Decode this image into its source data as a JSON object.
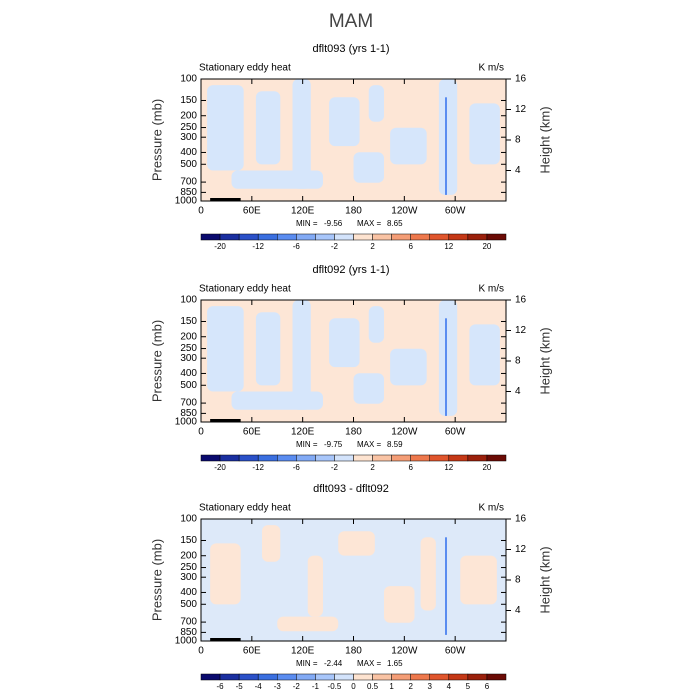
{
  "title": "MAM",
  "chart_data": [
    {
      "type": "contour",
      "title": "dflt093 (yrs 1-1)",
      "left_label": "Stationary eddy heat",
      "right_label": "K m/s",
      "ylabel": "Pressure (mb)",
      "y2label": "Height (km)",
      "ylog": true,
      "ylim": [
        1000,
        100
      ],
      "yticks": [
        100,
        150,
        200,
        250,
        300,
        400,
        500,
        700,
        850,
        1000
      ],
      "y2lim": [
        0,
        16
      ],
      "y2ticks": [
        4,
        8,
        12,
        16
      ],
      "xlim": [
        0,
        360
      ],
      "xticks": [
        0,
        {
          "value": 60,
          "label": "60E"
        },
        {
          "value": 120,
          "label": "120E"
        },
        180,
        {
          "value": 240,
          "label": "120W"
        },
        {
          "value": 300,
          "label": "60W"
        }
      ],
      "min_label": "MIN =",
      "min": -9.56,
      "max_label": "MAX =",
      "max": 8.65,
      "colorbar": {
        "colors": [
          "#0a0a6e",
          "#1a2fa0",
          "#2a50c8",
          "#3a6fe0",
          "#5a8cf0",
          "#82aaf5",
          "#a8c6fa",
          "#d3e3fb",
          "#fde3d0",
          "#f9c3a4",
          "#f49d76",
          "#ee784c",
          "#e0552c",
          "#c53816",
          "#9b200b",
          "#6b0b05"
        ],
        "labels": [
          -20,
          -12,
          -6,
          -2,
          2,
          6,
          12,
          20
        ],
        "label_every": 2
      }
    },
    {
      "type": "contour",
      "title": "dflt092 (yrs 1-1)",
      "left_label": "Stationary eddy heat",
      "right_label": "K m/s",
      "ylabel": "Pressure (mb)",
      "y2label": "Height (km)",
      "ylog": true,
      "ylim": [
        1000,
        100
      ],
      "yticks": [
        100,
        150,
        200,
        250,
        300,
        400,
        500,
        700,
        850,
        1000
      ],
      "y2lim": [
        0,
        16
      ],
      "y2ticks": [
        4,
        8,
        12,
        16
      ],
      "xlim": [
        0,
        360
      ],
      "xticks": [
        0,
        {
          "value": 60,
          "label": "60E"
        },
        {
          "value": 120,
          "label": "120E"
        },
        180,
        {
          "value": 240,
          "label": "120W"
        },
        {
          "value": 300,
          "label": "60W"
        }
      ],
      "min_label": "MIN =",
      "min": -9.75,
      "max_label": "MAX =",
      "max": 8.59,
      "colorbar": {
        "colors": [
          "#0a0a6e",
          "#1a2fa0",
          "#2a50c8",
          "#3a6fe0",
          "#5a8cf0",
          "#82aaf5",
          "#a8c6fa",
          "#d3e3fb",
          "#fde3d0",
          "#f9c3a4",
          "#f49d76",
          "#ee784c",
          "#e0552c",
          "#c53816",
          "#9b200b",
          "#6b0b05"
        ],
        "labels": [
          -20,
          -12,
          -6,
          -2,
          2,
          6,
          12,
          20
        ],
        "label_every": 2
      }
    },
    {
      "type": "contour",
      "title": "dflt093 - dflt092",
      "left_label": "Stationary eddy heat",
      "right_label": "K m/s",
      "ylabel": "Pressure (mb)",
      "y2label": "Height (km)",
      "ylog": true,
      "ylim": [
        1000,
        100
      ],
      "yticks": [
        100,
        150,
        200,
        250,
        300,
        400,
        500,
        700,
        850,
        1000
      ],
      "y2lim": [
        0,
        16
      ],
      "y2ticks": [
        4,
        8,
        12,
        16
      ],
      "xlim": [
        0,
        360
      ],
      "xticks": [
        0,
        {
          "value": 60,
          "label": "60E"
        },
        {
          "value": 120,
          "label": "120E"
        },
        180,
        {
          "value": 240,
          "label": "120W"
        },
        {
          "value": 300,
          "label": "60W"
        }
      ],
      "min_label": "MIN =",
      "min": -2.44,
      "max_label": "MAX =",
      "max": 1.65,
      "colorbar": {
        "colors": [
          "#0a0a6e",
          "#1a2fa0",
          "#2a50c8",
          "#3a6fe0",
          "#5a8cf0",
          "#82aaf5",
          "#a8c6fa",
          "#d3e3fb",
          "#fde3d0",
          "#f9c3a4",
          "#f49d76",
          "#ee784c",
          "#e0552c",
          "#c53816",
          "#9b200b",
          "#6b0b05"
        ],
        "labels": [
          -6,
          -5,
          -4,
          -3,
          -2,
          -1,
          -0.5,
          0,
          0.5,
          1,
          2,
          3,
          4,
          5,
          6
        ],
        "label_every": 1
      }
    }
  ]
}
